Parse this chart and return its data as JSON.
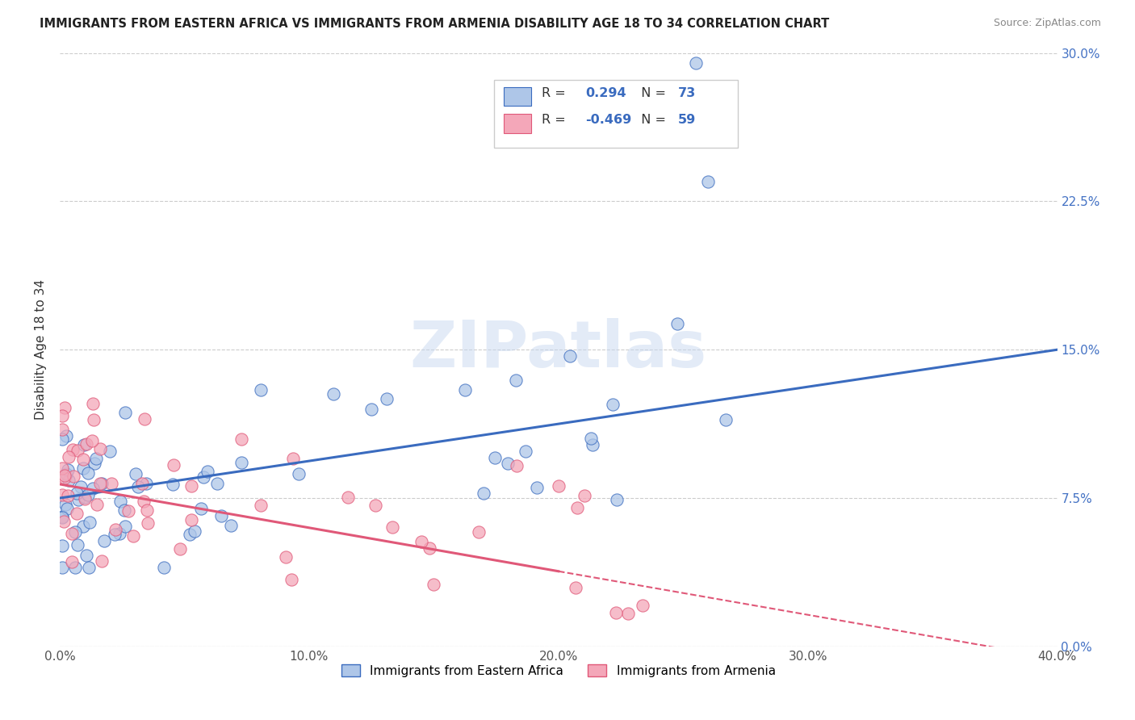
{
  "title": "IMMIGRANTS FROM EASTERN AFRICA VS IMMIGRANTS FROM ARMENIA DISABILITY AGE 18 TO 34 CORRELATION CHART",
  "source": "Source: ZipAtlas.com",
  "xlim": [
    0.0,
    0.4
  ],
  "ylim": [
    0.0,
    0.3
  ],
  "ylabel": "Disability Age 18 to 34",
  "legend_label1": "Immigrants from Eastern Africa",
  "legend_label2": "Immigrants from Armenia",
  "R1": 0.294,
  "N1": 73,
  "R2": -0.469,
  "N2": 59,
  "color1": "#aec6e8",
  "color2": "#f4a7b9",
  "line_color1": "#3a6bbf",
  "line_color2": "#e05878",
  "watermark": "ZIPatlas",
  "background_color": "#ffffff",
  "grid_color": "#cccccc",
  "right_tick_color": "#4472c4",
  "seed1": 12,
  "seed2": 99
}
